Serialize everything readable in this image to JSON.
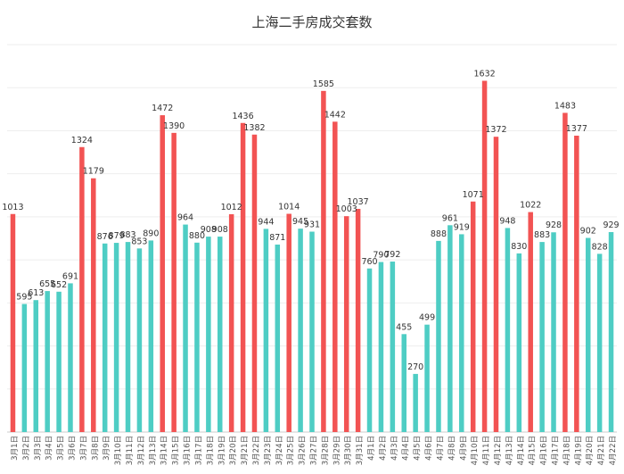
{
  "chart_data": {
    "type": "bar",
    "title": "上海二手房成交套数",
    "xlabel": "",
    "ylabel": "",
    "ylim": [
      0,
      1800
    ],
    "grid": true,
    "colors": {
      "highlight": "#f25353",
      "normal": "#4ecdc4"
    },
    "categories": [
      "3月1日",
      "3月2日",
      "3月3日",
      "3月4日",
      "3月5日",
      "3月6日",
      "3月7日",
      "3月8日",
      "3月9日",
      "3月10日",
      "3月11日",
      "3月12日",
      "3月13日",
      "3月14日",
      "3月15日",
      "3月16日",
      "3月17日",
      "3月18日",
      "3月19日",
      "3月20日",
      "3月21日",
      "3月22日",
      "3月23日",
      "3月24日",
      "3月25日",
      "3月26日",
      "3月27日",
      "3月28日",
      "3月29日",
      "3月30日",
      "3月31日",
      "4月1日",
      "4月2日",
      "4月3日",
      "4月4日",
      "4月5日",
      "4月6日",
      "4月7日",
      "4月8日",
      "4月9日",
      "4月10日",
      "4月11日",
      "4月12日",
      "4月13日",
      "4月14日",
      "4月15日",
      "4月16日",
      "4月17日",
      "4月18日",
      "4月19日",
      "4月20日",
      "4月21日",
      "4月22日"
    ],
    "values": [
      1013,
      595,
      613,
      655,
      652,
      691,
      1324,
      1179,
      876,
      879,
      883,
      853,
      890,
      1472,
      1390,
      964,
      880,
      908,
      908,
      1012,
      1436,
      1382,
      944,
      871,
      1014,
      945,
      931,
      1585,
      1442,
      1003,
      1037,
      760,
      790,
      792,
      455,
      270,
      499,
      888,
      961,
      919,
      1071,
      1632,
      1372,
      948,
      830,
      1022,
      883,
      928,
      1483,
      1377,
      902,
      828,
      929
    ],
    "highlight": [
      true,
      false,
      false,
      false,
      false,
      false,
      true,
      true,
      false,
      false,
      false,
      false,
      false,
      true,
      true,
      false,
      false,
      false,
      false,
      true,
      true,
      true,
      false,
      false,
      true,
      false,
      false,
      true,
      true,
      true,
      true,
      false,
      false,
      false,
      false,
      false,
      false,
      false,
      false,
      false,
      true,
      true,
      true,
      false,
      false,
      true,
      false,
      false,
      true,
      true,
      false,
      false,
      false
    ]
  }
}
